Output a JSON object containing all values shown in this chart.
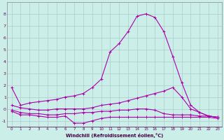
{
  "xlabel": "Windchill (Refroidissement éolien,°C)",
  "background_color": "#cceee8",
  "grid_color": "#aacccc",
  "line_color": "#aa00aa",
  "x_values": [
    0,
    1,
    2,
    3,
    4,
    5,
    6,
    7,
    8,
    9,
    10,
    11,
    12,
    13,
    14,
    15,
    16,
    17,
    18,
    19,
    20,
    21,
    22,
    23
  ],
  "line1": [
    1.8,
    0.3,
    0.5,
    0.6,
    0.7,
    0.8,
    1.0,
    1.1,
    1.3,
    1.8,
    2.5,
    4.8,
    5.5,
    6.5,
    7.8,
    8.0,
    7.7,
    6.5,
    4.4,
    2.2,
    0.3,
    -0.3,
    -0.6,
    -0.7
  ],
  "line2": [
    0.3,
    0.1,
    0.0,
    -0.1,
    -0.1,
    0.0,
    0.0,
    0.0,
    0.0,
    0.1,
    0.3,
    0.4,
    0.5,
    0.7,
    0.9,
    1.1,
    1.3,
    1.5,
    1.8,
    1.0,
    0.0,
    -0.3,
    -0.6,
    -0.7
  ],
  "line3": [
    -0.1,
    -0.3,
    -0.4,
    -0.4,
    -0.5,
    -0.5,
    -0.4,
    -0.4,
    -0.3,
    -0.3,
    -0.2,
    -0.2,
    -0.1,
    -0.1,
    0.0,
    0.0,
    -0.1,
    -0.4,
    -0.5,
    -0.5,
    -0.5,
    -0.6,
    -0.6,
    -0.7
  ],
  "line4": [
    -0.2,
    -0.5,
    -0.5,
    -0.6,
    -0.7,
    -0.7,
    -0.6,
    -1.2,
    -1.2,
    -1.0,
    -0.8,
    -0.7,
    -0.7,
    -0.7,
    -0.7,
    -0.7,
    -0.7,
    -0.7,
    -0.7,
    -0.7,
    -0.7,
    -0.7,
    -0.7,
    -0.8
  ],
  "ylim": [
    -1.5,
    9.0
  ],
  "xlim": [
    -0.5,
    23.5
  ],
  "yticks": [
    -1,
    0,
    1,
    2,
    3,
    4,
    5,
    6,
    7,
    8
  ],
  "xticks": [
    0,
    1,
    2,
    3,
    4,
    5,
    6,
    7,
    8,
    9,
    10,
    11,
    12,
    13,
    14,
    15,
    16,
    17,
    18,
    19,
    20,
    21,
    22,
    23
  ]
}
